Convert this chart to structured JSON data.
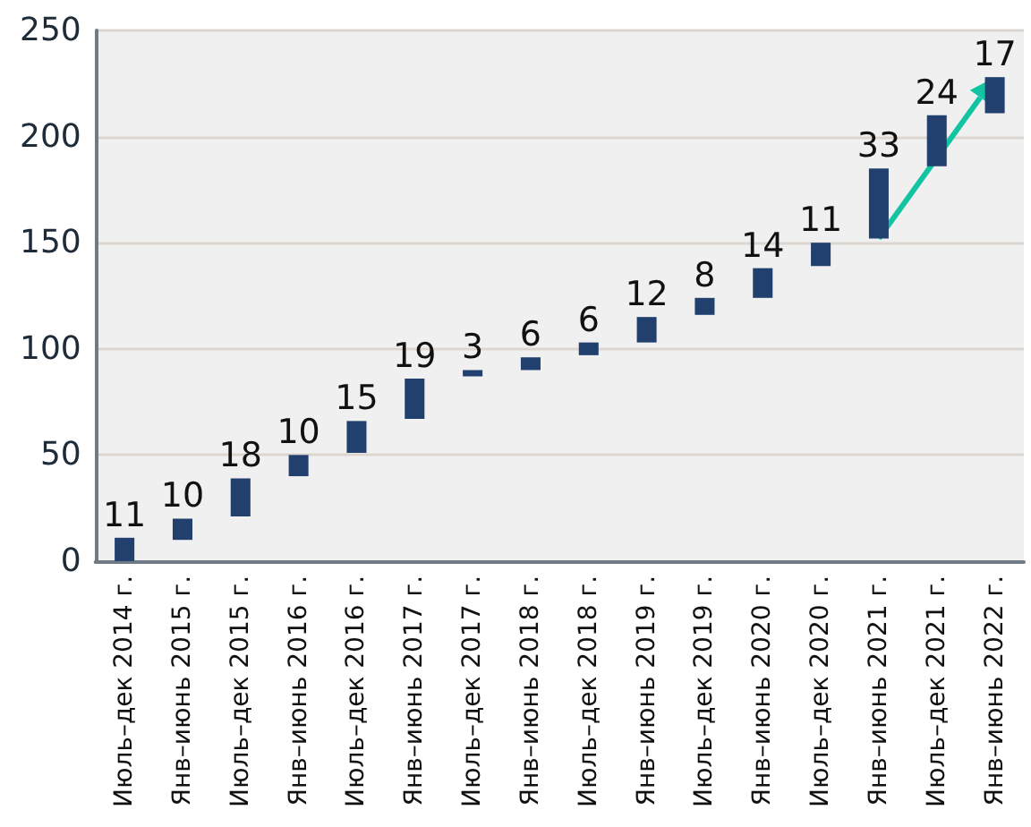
{
  "chart_data": {
    "type": "bar",
    "categories": [
      "Июль–дек 2014 г.",
      "Янв–июнь 2015 г.",
      "Июль–дек 2015 г.",
      "Янв–июнь 2016 г.",
      "Июль–дек 2016 г.",
      "Янв–июнь 2017 г.",
      "Июль–дек 2017 г.",
      "Янв–июнь 2018 г.",
      "Июль–дек 2018 г.",
      "Янв–июнь 2019 г.",
      "Июль–дек 2019 г.",
      "Янв–июнь 2020 г.",
      "Июль–дек 2020 г.",
      "Янв–июнь 2021 г.",
      "Июль–дек 2021 г.",
      "Янв–июнь 2022 г."
    ],
    "values": [
      11,
      10,
      18,
      10,
      15,
      19,
      3,
      6,
      6,
      12,
      8,
      14,
      11,
      33,
      24,
      17
    ],
    "base": [
      0,
      10,
      21,
      40,
      51,
      67,
      87,
      90,
      97,
      103,
      116,
      124,
      139,
      152,
      186,
      211
    ],
    "color": "#22406e",
    "data_labels": true,
    "ylim": [
      0,
      250
    ],
    "yticks": [
      0,
      50,
      100,
      150,
      200,
      250
    ],
    "grid": "y"
  }
}
